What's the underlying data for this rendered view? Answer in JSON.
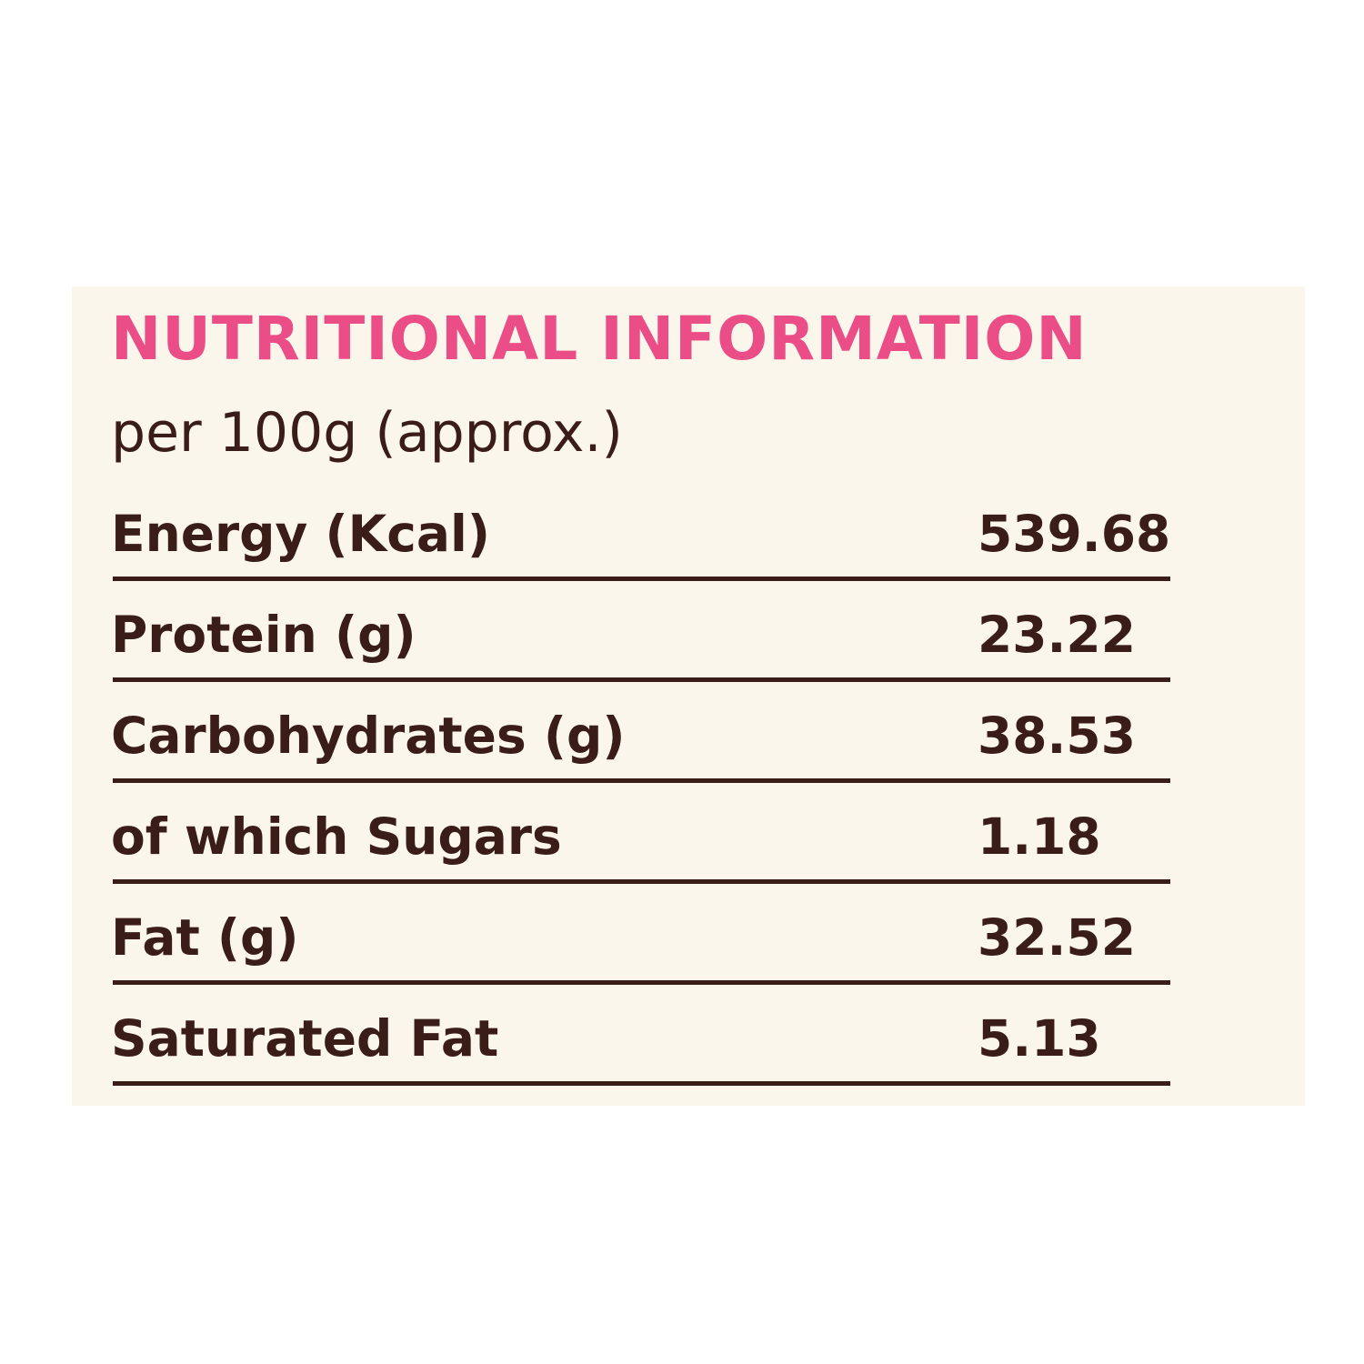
{
  "title": "NUTRITIONAL INFORMATION",
  "subtitle": "per 100g (approx.)",
  "rows": [
    {
      "label": "Energy (Kcal)",
      "value": "539.68"
    },
    {
      "label": "Protein (g)",
      "value": "23.22"
    },
    {
      "label": "Carbohydrates (g)",
      "value": "38.53"
    },
    {
      "label": "of which Sugars",
      "value": "1.18"
    },
    {
      "label": "Fat (g)",
      "value": "32.52"
    },
    {
      "label": "Saturated Fat",
      "value": "5.13"
    }
  ],
  "colors": {
    "background": "#ffffff",
    "panel": "#fbf6ec",
    "title": "#eb4d86",
    "text": "#3a1c18"
  }
}
